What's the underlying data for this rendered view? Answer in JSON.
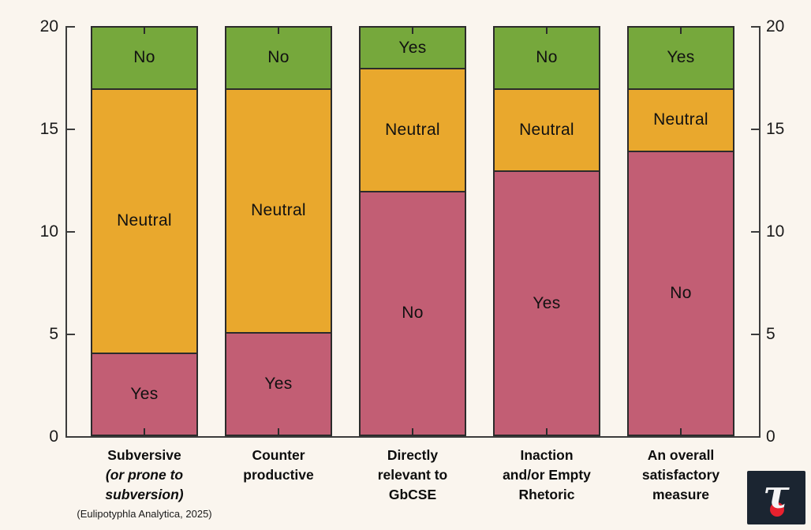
{
  "canvas": {
    "background": "#faf5ee",
    "axis_color": "#3c3c3c",
    "bar_border_color": "#2b2b2b"
  },
  "chart_data": {
    "type": "bar",
    "stacked": true,
    "title": "",
    "xlabel": "",
    "ylabel": "",
    "ylim": [
      0,
      20
    ],
    "yticks": [
      0,
      5,
      10,
      15,
      20
    ],
    "y_axis_sides": [
      "left",
      "right"
    ],
    "grid": false,
    "legend": "none (segments labeled inline)",
    "segment_colors_bottom_to_top": [
      "#c25e74",
      "#e9a82d",
      "#76a83c"
    ],
    "bars": [
      {
        "category_lines": [
          {
            "text": "Subversive",
            "italic": false
          },
          {
            "text": "(or prone to",
            "italic": true
          },
          {
            "text": "subversion)",
            "italic": true
          }
        ],
        "footnote": "(Eulipotyphla Analytica, 2025)",
        "segments": [
          {
            "label": "Yes",
            "value": 4,
            "color": "#c25e74"
          },
          {
            "label": "Neutral",
            "value": 13,
            "color": "#e9a82d"
          },
          {
            "label": "No",
            "value": 3,
            "color": "#76a83c"
          }
        ]
      },
      {
        "category_lines": [
          {
            "text": "Counter",
            "italic": false
          },
          {
            "text": "productive",
            "italic": false
          }
        ],
        "footnote": "",
        "segments": [
          {
            "label": "Yes",
            "value": 5,
            "color": "#c25e74"
          },
          {
            "label": "Neutral",
            "value": 12,
            "color": "#e9a82d"
          },
          {
            "label": "No",
            "value": 3,
            "color": "#76a83c"
          }
        ]
      },
      {
        "category_lines": [
          {
            "text": "Directly",
            "italic": false
          },
          {
            "text": "relevant to",
            "italic": false
          },
          {
            "text": "GbCSE",
            "italic": false
          }
        ],
        "footnote": "",
        "segments": [
          {
            "label": "No",
            "value": 12,
            "color": "#c25e74"
          },
          {
            "label": "Neutral",
            "value": 6,
            "color": "#e9a82d"
          },
          {
            "label": "Yes",
            "value": 2,
            "color": "#76a83c"
          }
        ]
      },
      {
        "category_lines": [
          {
            "text": "Inaction",
            "italic": false
          },
          {
            "text": "and/or Empty",
            "italic": false
          },
          {
            "text": "Rhetoric",
            "italic": false
          }
        ],
        "footnote": "",
        "segments": [
          {
            "label": "Yes",
            "value": 13,
            "color": "#c25e74"
          },
          {
            "label": "Neutral",
            "value": 4,
            "color": "#e9a82d"
          },
          {
            "label": "No",
            "value": 3,
            "color": "#76a83c"
          }
        ]
      },
      {
        "category_lines": [
          {
            "text": "An overall",
            "italic": false
          },
          {
            "text": "satisfactory",
            "italic": false
          },
          {
            "text": "measure",
            "italic": false
          }
        ],
        "footnote": "",
        "segments": [
          {
            "label": "No",
            "value": 14,
            "color": "#c25e74"
          },
          {
            "label": "Neutral",
            "value": 3,
            "color": "#e9a82d"
          },
          {
            "label": "Yes",
            "value": 3,
            "color": "#76a83c"
          }
        ]
      }
    ]
  },
  "logo": {
    "glyph": "τ",
    "background": "#1b2531",
    "glyph_color": "#f4f4f4",
    "accent_color": "#e8212e"
  }
}
